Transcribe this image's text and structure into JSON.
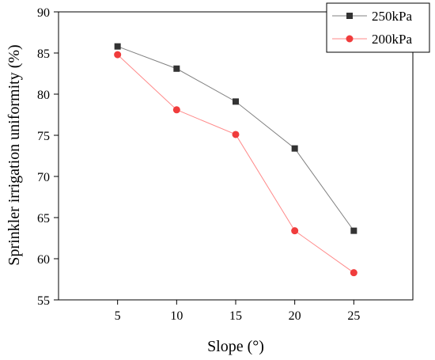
{
  "chart_data": {
    "type": "line",
    "xlabel": "Slope (°)",
    "ylabel": "Sprinkler irrigation uniformity (%)",
    "x": [
      5,
      10,
      15,
      20,
      25
    ],
    "xlim": [
      0,
      30
    ],
    "ylim": [
      55,
      90
    ],
    "xticks": [
      5,
      10,
      15,
      20,
      25
    ],
    "yticks": [
      55,
      60,
      65,
      70,
      75,
      80,
      85,
      90
    ],
    "grid": false,
    "legend_position": "top-right",
    "series": [
      {
        "name": "250kPa",
        "marker": "square",
        "line_color": "#808080",
        "marker_color": "#333333",
        "values": [
          85.8,
          83.1,
          79.1,
          73.4,
          63.4
        ]
      },
      {
        "name": "200kPa",
        "marker": "circle",
        "line_color": "#ff8a8a",
        "marker_color": "#f03c3c",
        "values": [
          84.8,
          78.1,
          75.1,
          63.4,
          58.3
        ]
      }
    ]
  }
}
